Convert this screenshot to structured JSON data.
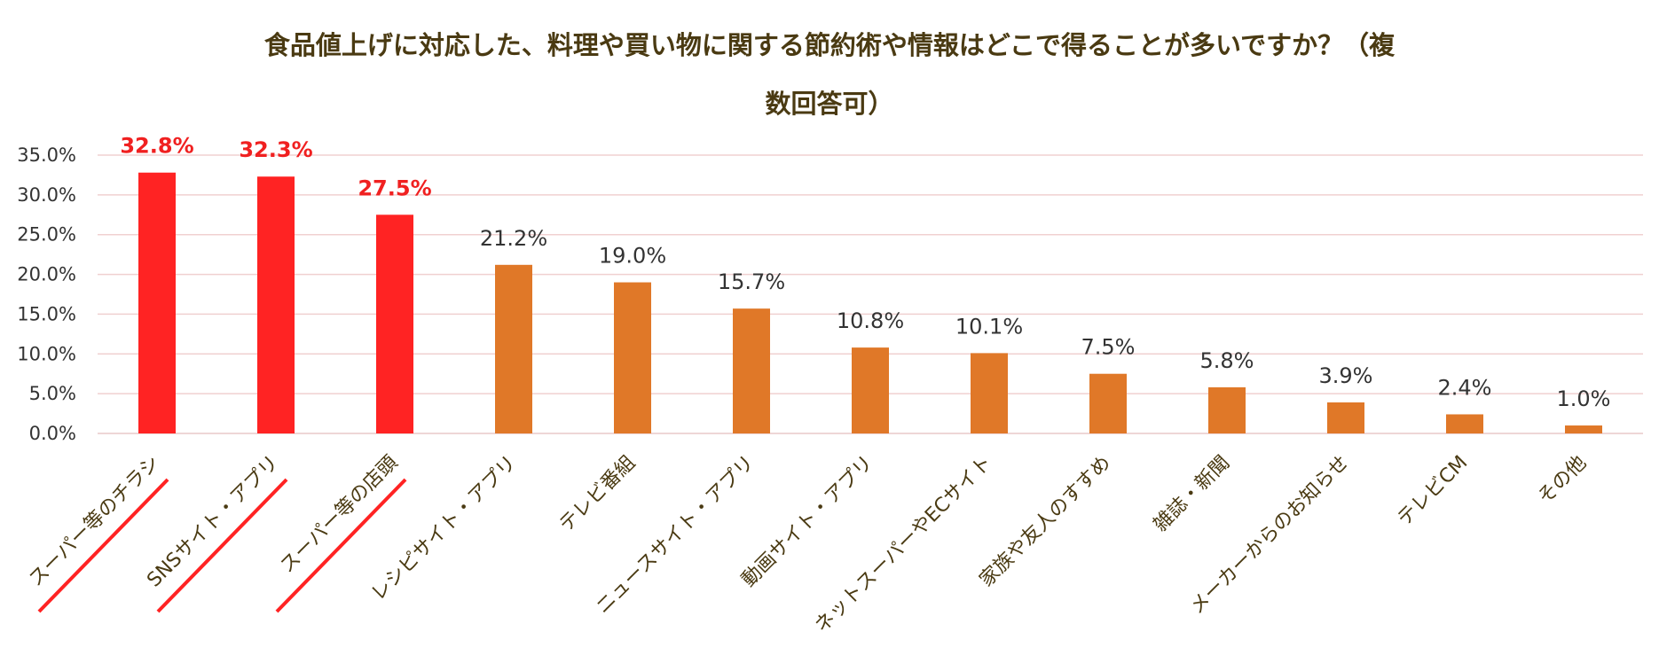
{
  "chart_data": {
    "type": "bar",
    "title": "食品値上げに対応した、料理や買い物に関する節約術や情報はどこで得ることが多いですか？（複数回答可）",
    "title_line1": "食品値上げに対応した、料理や買い物に関する節約術や情報はどこで得ることが多いですか？（複",
    "title_line2": "数回答可）",
    "xlabel": "",
    "ylabel": "",
    "ylim": [
      0,
      35
    ],
    "yticks": [
      "0.0%",
      "5.0%",
      "10.0%",
      "15.0%",
      "20.0%",
      "25.0%",
      "30.0%",
      "35.0%"
    ],
    "grid": true,
    "categories": [
      "スーパー等のチラシ",
      "SNSサイト・アプリ",
      "スーパー等の店頭",
      "レシピサイト・アプリ",
      "テレビ番組",
      "ニュースサイト・アプリ",
      "動画サイト・アプリ",
      "ネットスーパーやECサイト",
      "家族や友人のすすめ",
      "雑誌・新聞",
      "メーカーからのお知らせ",
      "テレビCM",
      "その他"
    ],
    "values": [
      32.8,
      32.3,
      27.5,
      21.2,
      19.0,
      15.7,
      10.8,
      10.1,
      7.5,
      5.8,
      3.9,
      2.4,
      1.0
    ],
    "value_labels": [
      "32.8%",
      "32.3%",
      "27.5%",
      "21.2%",
      "19.0%",
      "15.7%",
      "10.8%",
      "10.1%",
      "7.5%",
      "5.8%",
      "3.9%",
      "2.4%",
      "1.0%"
    ],
    "highlight_count": 3,
    "colors": {
      "highlight": "#ff2323",
      "bar": "#e07828",
      "grid": "#f0d0d0",
      "axis": "#e8c8c8",
      "title": "#4a3a12"
    }
  }
}
